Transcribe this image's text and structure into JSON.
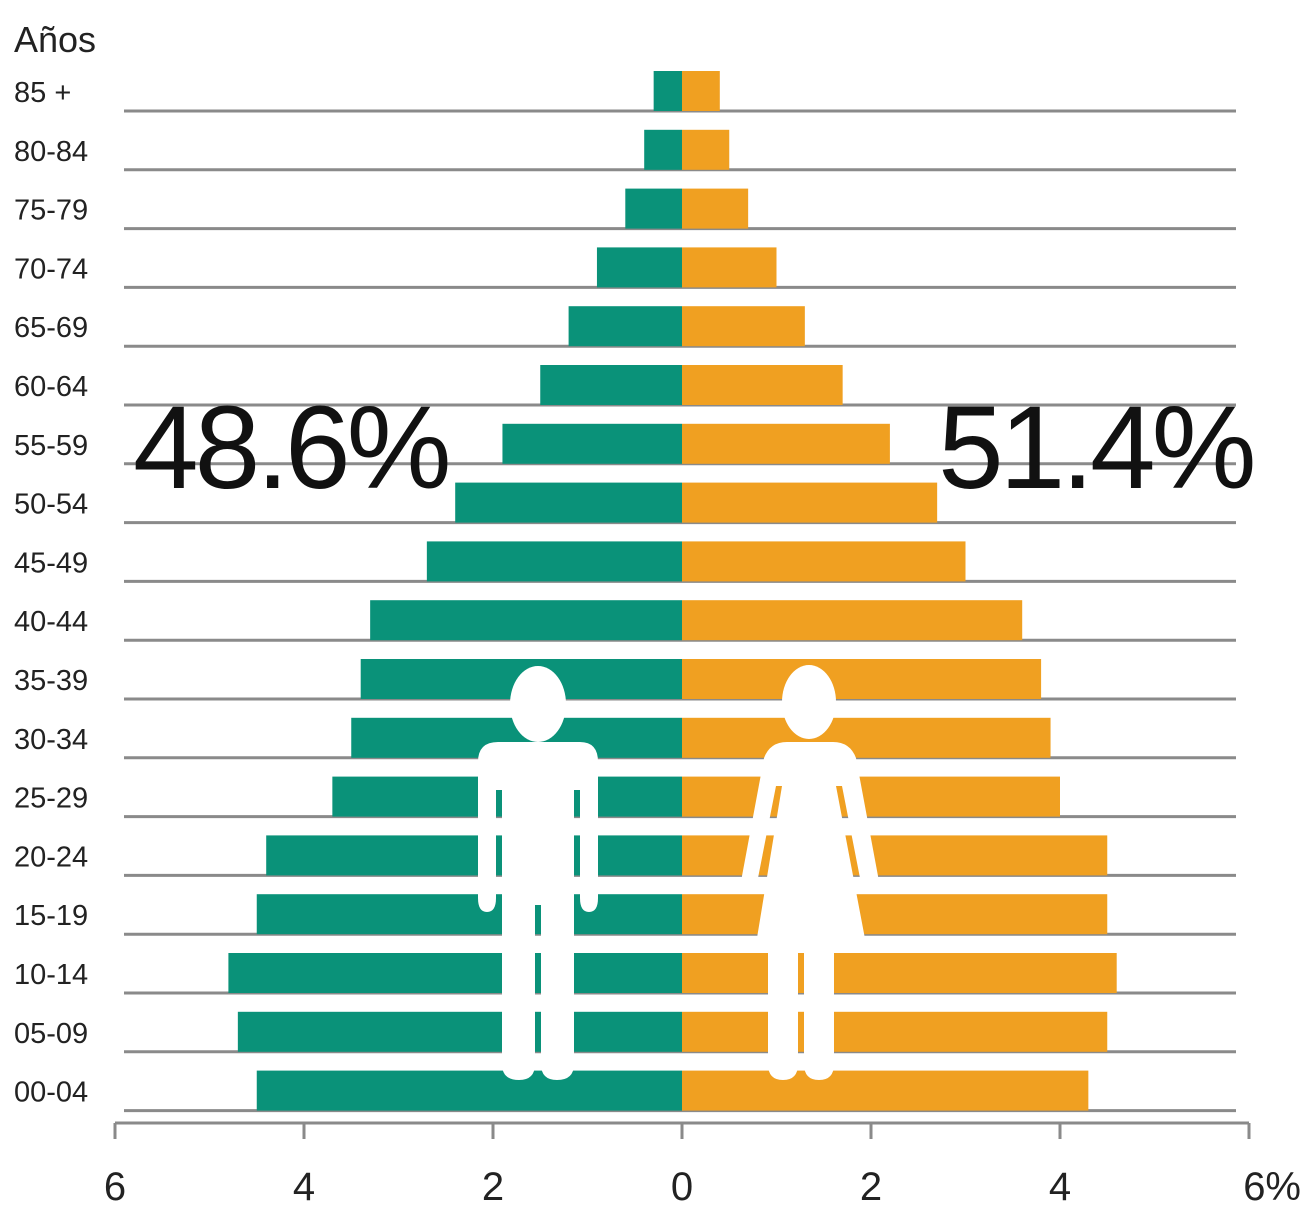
{
  "chart_data": {
    "type": "bar",
    "subtype": "population-pyramid",
    "y_axis_title": "Años",
    "categories": [
      "85 +",
      "80-84",
      "75-79",
      "70-74",
      "65-69",
      "60-64",
      "55-59",
      "50-54",
      "45-49",
      "40-44",
      "35-39",
      "30-34",
      "25-29",
      "20-24",
      "15-19",
      "10-14",
      "05-09",
      "00-04"
    ],
    "series": [
      {
        "values": [
          0.3,
          0.4,
          0.6,
          0.9,
          1.2,
          1.5,
          1.9,
          2.4,
          2.7,
          3.3,
          3.4,
          3.5,
          3.7,
          4.4,
          4.5,
          4.8,
          4.7,
          4.5
        ],
        "color": "#0a9279"
      },
      {
        "values": [
          0.4,
          0.5,
          0.7,
          1.0,
          1.3,
          1.7,
          2.2,
          2.7,
          3.0,
          3.6,
          3.8,
          3.9,
          4.0,
          4.5,
          4.5,
          4.6,
          4.5,
          4.3
        ],
        "color": "#f0a021"
      }
    ],
    "x_ticks_left": [
      "6",
      "4",
      "2",
      "0"
    ],
    "x_ticks_right": [
      "2",
      "4",
      "6%"
    ],
    "xlim": [
      -6,
      6
    ],
    "totals": {
      "left": "48.6%",
      "right": "51.4%"
    },
    "icons": {
      "left": "male-figure-icon",
      "right": "female-figure-icon"
    },
    "grid": true,
    "colors": {
      "male": "#0a9279",
      "female": "#f0a021",
      "grid": "#8a8a8a",
      "background": "#ffffff"
    }
  }
}
